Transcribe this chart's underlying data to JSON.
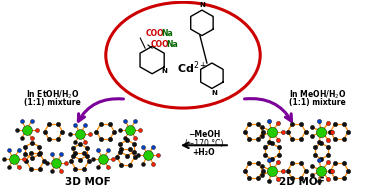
{
  "bg_color": "#ffffff",
  "ellipse_color": "#cc0000",
  "cd_label": "Cd$^{2+}$",
  "coona_color": "#cc0000",
  "na_color": "#006600",
  "arrow_left_color": "#7b0099",
  "arrow_right_color": "#7b0099",
  "arrow_center_color": "#000000",
  "left_label_line1": "In EtOH/H$_2$O",
  "left_label_line2": "(1:1) mixture",
  "right_label_line1": "In MeOH/H$_2$O",
  "right_label_line2": "(1:1) mixture",
  "center_label_line1": "−MeOH",
  "center_label_line2": "(∼170 °C)",
  "center_label_line3": "+H₂O",
  "label_3d": "3D MOF",
  "label_2d": "2D MOF",
  "mof_green": "#22cc00",
  "mof_orange": "#ff8800",
  "mof_black": "#111111",
  "mof_red": "#ff2200",
  "mof_blue": "#0044cc"
}
